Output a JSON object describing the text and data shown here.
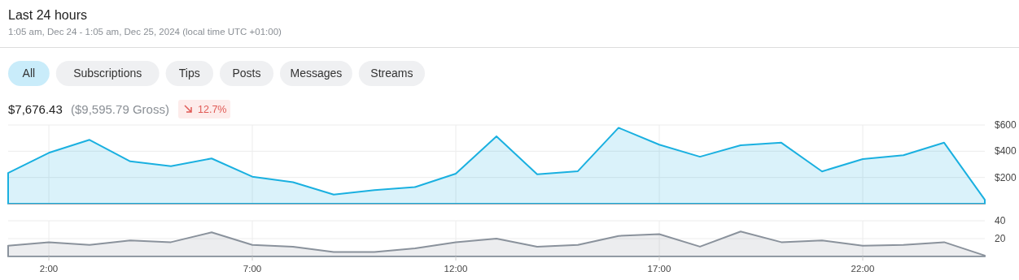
{
  "chart_data": [
    {
      "type": "other",
      "title": "Last 24 hours",
      "subtitle": "1:05 am, Dec 24 - 1:05 am, Dec 25, 2024 (local time UTC +01:00)",
      "annotations": [
        "All",
        "Subscriptions",
        "Tips",
        "Posts",
        "Messages",
        "Streams",
        "$7,676.43",
        "($9,595.79 Gross)",
        "12.7%"
      ]
    },
    {
      "type": "area",
      "x": [
        1,
        2,
        3,
        4,
        5,
        6,
        7,
        8,
        9,
        10,
        11,
        12,
        13,
        14,
        15,
        16,
        17,
        18,
        19,
        20,
        21,
        22,
        23,
        24,
        25
      ],
      "xlim": [
        1,
        25
      ],
      "xticks": [
        {
          "value": 2,
          "label": null
        },
        {
          "value": 7,
          "label": null
        },
        {
          "value": 12,
          "label": null
        },
        {
          "value": 17,
          "label": null
        },
        {
          "value": 22,
          "label": null
        }
      ],
      "ylim": [
        0,
        600
      ],
      "yticks": [
        {
          "value": 200,
          "label": "$200"
        },
        {
          "value": 400,
          "label": "$400"
        },
        {
          "value": 600,
          "label": "$600"
        }
      ],
      "grid": true,
      "tick_labels": "y",
      "series": [
        {
          "color": "#1ab0e0",
          "values": [
            234,
            388,
            487,
            323,
            286,
            345,
            206,
            164,
            70,
            104,
            127,
            229,
            514,
            224,
            248,
            579,
            450,
            358,
            445,
            465,
            246,
            340,
            370,
            465,
            30
          ]
        }
      ]
    },
    {
      "type": "area",
      "x": [
        1,
        2,
        3,
        4,
        5,
        6,
        7,
        8,
        9,
        10,
        11,
        12,
        13,
        14,
        15,
        16,
        17,
        18,
        19,
        20,
        21,
        22,
        23,
        24,
        25
      ],
      "xlim": [
        1,
        25
      ],
      "xticks": [
        {
          "value": 2,
          "label": "2:00"
        },
        {
          "value": 7,
          "label": "7:00"
        },
        {
          "value": 12,
          "label": "12:00"
        },
        {
          "value": 17,
          "label": "17:00"
        },
        {
          "value": 22,
          "label": "22:00"
        }
      ],
      "ylim": [
        0,
        40
      ],
      "yticks": [
        20,
        40
      ],
      "grid": true,
      "series": [
        {
          "color": "#8a929c",
          "values": [
            12,
            16,
            13,
            18,
            16,
            27,
            13,
            11,
            5,
            5,
            9,
            16,
            20,
            11,
            13,
            23,
            25,
            11,
            28,
            16,
            18,
            12,
            13,
            16,
            1
          ]
        }
      ]
    }
  ]
}
